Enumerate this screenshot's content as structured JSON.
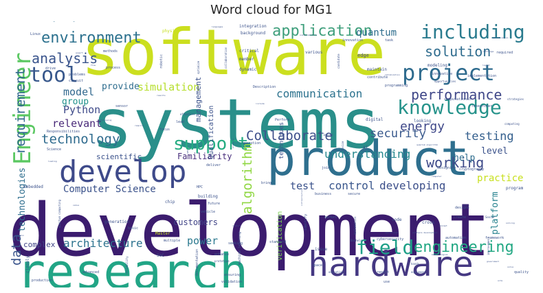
{
  "chart_data": {
    "type": "wordcloud",
    "title": "Word cloud for MG1",
    "colors": [
      "#440154",
      "#482878",
      "#3e4989",
      "#31688e",
      "#26828e",
      "#1f9e89",
      "#35b779",
      "#6ece58",
      "#b5de2b",
      "#d2e21b"
    ],
    "words": [
      {
        "text": "development",
        "weight": 100,
        "color": "#3b1c6e"
      },
      {
        "text": "systems",
        "weight": 96,
        "color": "#2a8f8a"
      },
      {
        "text": "software",
        "weight": 95,
        "color": "#cbdf1f"
      },
      {
        "text": "product",
        "weight": 80,
        "color": "#2e6f8e"
      },
      {
        "text": "research",
        "weight": 76,
        "color": "#22a586"
      },
      {
        "text": "hardware",
        "weight": 54,
        "color": "#453882"
      },
      {
        "text": "develop",
        "weight": 46,
        "color": "#3e4a8a"
      },
      {
        "text": "Engineer",
        "weight": 35,
        "color": "#5bc862"
      },
      {
        "text": "project",
        "weight": 33,
        "color": "#2e6b8e"
      },
      {
        "text": "knowledge",
        "weight": 31,
        "color": "#26938b"
      },
      {
        "text": "including",
        "weight": 29,
        "color": "#2a7b8e"
      },
      {
        "text": "tool",
        "weight": 29,
        "color": "#38588c"
      },
      {
        "text": "field",
        "weight": 27,
        "color": "#1fa088"
      },
      {
        "text": "support",
        "weight": 26,
        "color": "#25ac82"
      },
      {
        "text": "engineering",
        "weight": 24,
        "color": "#24a884"
      },
      {
        "text": "environment",
        "weight": 23,
        "color": "#2c718e"
      },
      {
        "text": "application",
        "weight": 23,
        "color": "#3f9f7c"
      },
      {
        "text": "solution",
        "weight": 22,
        "color": "#2f6c8e"
      },
      {
        "text": "analysis",
        "weight": 21,
        "color": "#3a548c"
      },
      {
        "text": "performance",
        "weight": 21,
        "color": "#3f4788"
      },
      {
        "text": "requirement",
        "weight": 20,
        "color": "#31688e"
      },
      {
        "text": "Collaborate",
        "weight": 20,
        "color": "#3d4e8a"
      },
      {
        "text": "technology",
        "weight": 20,
        "color": "#2f6b8e"
      },
      {
        "text": "working",
        "weight": 20,
        "color": "#3e4a89"
      },
      {
        "text": "data",
        "weight": 20,
        "color": "#3a548c"
      },
      {
        "text": "algorithm",
        "weight": 19,
        "color": "#90d743"
      },
      {
        "text": "energy",
        "weight": 19,
        "color": "#3f4889"
      },
      {
        "text": "security",
        "weight": 17,
        "color": "#38588c"
      },
      {
        "text": "testing",
        "weight": 17,
        "color": "#345f8d"
      },
      {
        "text": "communication",
        "weight": 17,
        "color": "#2c728e"
      },
      {
        "text": "understanding",
        "weight": 16,
        "color": "#24878e"
      },
      {
        "text": "architecture",
        "weight": 16,
        "color": "#2c728e"
      },
      {
        "text": "control",
        "weight": 16,
        "color": "#39568c"
      },
      {
        "text": "developing",
        "weight": 16,
        "color": "#3c4f8a"
      },
      {
        "text": "simulation",
        "weight": 16,
        "color": "#b5de2b"
      },
      {
        "text": "Python",
        "weight": 15,
        "color": "#3e4a89"
      },
      {
        "text": "relevant",
        "weight": 15,
        "color": "#482878"
      },
      {
        "text": "test",
        "weight": 15,
        "color": "#3b528b"
      },
      {
        "text": "model",
        "weight": 15,
        "color": "#31688e"
      },
      {
        "text": "Computer Science",
        "weight": 14,
        "color": "#3b528b"
      },
      {
        "text": "power",
        "weight": 14,
        "color": "#2a788e"
      },
      {
        "text": "practice",
        "weight": 14,
        "color": "#c8e020"
      },
      {
        "text": "technologies",
        "weight": 14,
        "color": "#2e6d8e"
      },
      {
        "text": "quantum",
        "weight": 14,
        "color": "#2e6d8e"
      },
      {
        "text": "provide",
        "weight": 13,
        "color": "#2e6d8e"
      },
      {
        "text": "group",
        "weight": 13,
        "color": "#21918c"
      },
      {
        "text": "level",
        "weight": 13,
        "color": "#3b528b"
      },
      {
        "text": "help",
        "weight": 13,
        "color": "#2e6d8e"
      },
      {
        "text": "platform",
        "weight": 13,
        "color": "#26828e"
      },
      {
        "text": "customers",
        "weight": 12,
        "color": "#414487"
      },
      {
        "text": "Familiarity",
        "weight": 12,
        "color": "#472d7b"
      },
      {
        "text": "management",
        "weight": 11,
        "color": "#3b528b"
      },
      {
        "text": "complex",
        "weight": 11,
        "color": "#414487"
      },
      {
        "text": "scientific",
        "weight": 11,
        "color": "#3b528b"
      },
      {
        "text": "Qualification",
        "weight": 10,
        "color": "#3b528b"
      },
      {
        "text": "verification",
        "weight": 10,
        "color": "#7ad151"
      },
      {
        "text": "techniques",
        "weight": 9,
        "color": "#3b528b"
      },
      {
        "text": "Electrical Engineering",
        "weight": 6,
        "color": "#2e6d8e"
      },
      {
        "text": "robot",
        "weight": 6,
        "color": "#3b528b"
      },
      {
        "text": "organization",
        "weight": 5,
        "color": "#3b528b"
      },
      {
        "text": "physics",
        "weight": 6,
        "color": "#c8e020"
      },
      {
        "text": "integration",
        "weight": 6,
        "color": "#3b528b"
      },
      {
        "text": "background",
        "weight": 6,
        "color": "#3b528b"
      },
      {
        "text": "innovation",
        "weight": 5,
        "color": "#3b528b"
      },
      {
        "text": "task",
        "weight": 5,
        "color": "#3b528b"
      },
      {
        "text": "Linux",
        "weight": 5,
        "color": "#3b528b"
      },
      {
        "text": "critical",
        "weight": 6,
        "color": "#3b528b"
      },
      {
        "text": "various",
        "weight": 6,
        "color": "#3b528b"
      },
      {
        "text": "member",
        "weight": 6,
        "color": "#3b528b"
      },
      {
        "text": "dynamic",
        "weight": 6,
        "color": "#3b528b"
      },
      {
        "text": "edge",
        "weight": 7,
        "color": "#414487"
      },
      {
        "text": "maintain",
        "weight": 6,
        "color": "#3b528b"
      },
      {
        "text": "contribute",
        "weight": 5,
        "color": "#3b528b"
      },
      {
        "text": "programming",
        "weight": 5,
        "color": "#3b528b"
      },
      {
        "text": "modeling",
        "weight": 6,
        "color": "#3b528b"
      },
      {
        "text": "implementation",
        "weight": 5,
        "color": "#3b528b"
      },
      {
        "text": "innovative",
        "weight": 5,
        "color": "#3b528b"
      },
      {
        "text": "required",
        "weight": 5,
        "color": "#3b528b"
      },
      {
        "text": "methods",
        "weight": 5,
        "color": "#3b528b"
      },
      {
        "text": "problems",
        "weight": 5,
        "color": "#3b528b"
      },
      {
        "text": "drive",
        "weight": 5,
        "color": "#3b528b"
      },
      {
        "text": "process",
        "weight": 5,
        "color": "#3b528b"
      },
      {
        "text": "circuit",
        "weight": 5,
        "color": "#3b528b"
      },
      {
        "text": "robotic",
        "weight": 5,
        "color": "#3b528b"
      },
      {
        "text": "Description",
        "weight": 5,
        "color": "#3b528b"
      },
      {
        "text": "computational",
        "weight": 5,
        "color": "#3b528b"
      },
      {
        "text": "researcher",
        "weight": 5,
        "color": "#3b528b"
      },
      {
        "text": "Responsibilities",
        "weight": 5,
        "color": "#3b528b"
      },
      {
        "text": "sensor",
        "weight": 5,
        "color": "#3b528b"
      },
      {
        "text": "focus",
        "weight": 5,
        "color": "#3b528b"
      },
      {
        "text": "lead",
        "weight": 5,
        "color": "#3b528b"
      },
      {
        "text": "Perform",
        "weight": 5,
        "color": "#3b528b"
      },
      {
        "text": "digital",
        "weight": 6,
        "color": "#3b528b"
      },
      {
        "text": "looking",
        "weight": 6,
        "color": "#3b528b"
      },
      {
        "text": "Science",
        "weight": 5,
        "color": "#3b528b"
      },
      {
        "text": "operation",
        "weight": 5,
        "color": "#3b528b"
      },
      {
        "text": "AI",
        "weight": 6,
        "color": "#3b528b"
      },
      {
        "text": "designing",
        "weight": 5,
        "color": "#3b528b"
      },
      {
        "text": "cryptography",
        "weight": 5,
        "color": "#3b528b"
      },
      {
        "text": "embedded",
        "weight": 6,
        "color": "#3b528b"
      },
      {
        "text": "join",
        "weight": 5,
        "color": "#3b528b"
      },
      {
        "text": "deliver",
        "weight": 5,
        "color": "#3b528b"
      },
      {
        "text": "HPC",
        "weight": 5,
        "color": "#3b528b"
      },
      {
        "text": "chip",
        "weight": 6,
        "color": "#3b528b"
      },
      {
        "text": "bring",
        "weight": 5,
        "color": "#3b528b"
      },
      {
        "text": "program",
        "weight": 6,
        "color": "#3b528b"
      },
      {
        "text": "building",
        "weight": 6,
        "color": "#3b528b"
      },
      {
        "text": "future",
        "weight": 5,
        "color": "#3b528b"
      },
      {
        "text": "business",
        "weight": 5,
        "color": "#3b528b"
      },
      {
        "text": "secure",
        "weight": 5,
        "color": "#3b528b"
      },
      {
        "text": "designs",
        "weight": 5,
        "color": "#3b528b"
      },
      {
        "text": "vehicle",
        "weight": 5,
        "color": "#3b528b"
      },
      {
        "text": "create",
        "weight": 5,
        "color": "#3b528b"
      },
      {
        "text": "generation",
        "weight": 6,
        "color": "#3b528b"
      },
      {
        "text": "market",
        "weight": 5,
        "color": "#3b528b"
      },
      {
        "text": "identify",
        "weight": 5,
        "color": "#3b528b"
      },
      {
        "text": "code",
        "weight": 6,
        "color": "#3b528b"
      },
      {
        "text": "cross",
        "weight": 6,
        "color": "#3b528b"
      },
      {
        "text": "basic",
        "weight": 5,
        "color": "#3b528b"
      },
      {
        "text": "Master",
        "weight": 6,
        "color": "#c8e020"
      },
      {
        "text": "automation",
        "weight": 5,
        "color": "#3b528b"
      },
      {
        "text": "framework",
        "weight": 5,
        "color": "#3b528b"
      },
      {
        "text": "multiple",
        "weight": 5,
        "color": "#3b528b"
      },
      {
        "text": "seeking",
        "weight": 5,
        "color": "#3b528b"
      },
      {
        "text": "standard",
        "weight": 5,
        "color": "#3b528b"
      },
      {
        "text": "cybersecurity",
        "weight": 5,
        "color": "#3b528b"
      },
      {
        "text": "issue",
        "weight": 6,
        "color": "#3b528b"
      },
      {
        "text": "SoC",
        "weight": 6,
        "color": "#3b528b"
      },
      {
        "text": "enhance",
        "weight": 5,
        "color": "#3b528b"
      },
      {
        "text": "prototype",
        "weight": 4,
        "color": "#3b528b"
      },
      {
        "text": "machine learning",
        "weight": 5,
        "color": "#3b528b"
      },
      {
        "text": "space",
        "weight": 5,
        "color": "#3b528b"
      },
      {
        "text": "closely",
        "weight": 6,
        "color": "#3b528b"
      },
      {
        "text": "advanced",
        "weight": 5,
        "color": "#3b528b"
      },
      {
        "text": "production",
        "weight": 5,
        "color": "#3b528b"
      },
      {
        "text": "documentation",
        "weight": 5,
        "color": "#3b528b"
      },
      {
        "text": "ensuring",
        "weight": 5,
        "color": "#3b528b"
      },
      {
        "text": "validation",
        "weight": 5,
        "color": "#3b528b"
      },
      {
        "text": "report",
        "weight": 5,
        "color": "#3b528b"
      },
      {
        "text": "use",
        "weight": 5,
        "color": "#3b528b"
      },
      {
        "text": "quality",
        "weight": 5,
        "color": "#3b528b"
      },
      {
        "text": "quantum computing",
        "weight": 4,
        "color": "#3b528b"
      },
      {
        "text": "Bachelor",
        "weight": 4,
        "color": "#3b528b"
      },
      {
        "text": "Senior",
        "weight": 4,
        "color": "#3b528b"
      },
      {
        "text": "improvement",
        "weight": 4,
        "color": "#3b528b"
      },
      {
        "text": "hands",
        "weight": 4,
        "color": "#3b528b"
      },
      {
        "text": "impact",
        "weight": 4,
        "color": "#3b528b"
      },
      {
        "text": "strategies",
        "weight": 4,
        "color": "#3b528b"
      },
      {
        "text": "computing",
        "weight": 4,
        "color": "#3b528b"
      },
      {
        "text": "optimize",
        "weight": 4,
        "color": "#3b528b"
      },
      {
        "text": "collaboration",
        "weight": 4,
        "color": "#3b528b"
      },
      {
        "text": "candidate",
        "weight": 4,
        "color": "#3b528b"
      },
      {
        "text": "effective",
        "weight": 4,
        "color": "#3b528b"
      },
      {
        "text": "mathematics",
        "weight": 4,
        "color": "#3b528b"
      },
      {
        "text": "equipment",
        "weight": 4,
        "color": "#3b528b"
      },
      {
        "text": "education",
        "weight": 4,
        "color": "#3b528b"
      },
      {
        "text": "results",
        "weight": 3,
        "color": "#3b528b"
      },
      {
        "text": "following",
        "weight": 3,
        "color": "#3b528b"
      },
      {
        "text": "require",
        "weight": 3,
        "color": "#3b528b"
      },
      {
        "text": "include",
        "weight": 3,
        "color": "#3b528b"
      },
      {
        "text": "device",
        "weight": 4,
        "color": "#3b528b"
      },
      {
        "text": "reliability",
        "weight": 4,
        "color": "#3b528b"
      },
      {
        "text": "conduct",
        "weight": 3,
        "color": "#3b528b"
      },
      {
        "text": "domain",
        "weight": 3,
        "color": "#3b528b"
      },
      {
        "text": "solving",
        "weight": 3,
        "color": "#3b528b"
      },
      {
        "text": "concept",
        "weight": 3,
        "color": "#3b528b"
      },
      {
        "text": "quantum algorithm",
        "weight": 3,
        "color": "#3b528b"
      },
      {
        "text": "sustainability",
        "weight": 3,
        "color": "#3b528b"
      },
      {
        "text": "specification",
        "weight": 3,
        "color": "#3b528b"
      },
      {
        "text": "languages",
        "weight": 3,
        "color": "#3b528b"
      },
      {
        "text": "opportunities",
        "weight": 4,
        "color": "#3b528b"
      },
      {
        "text": "challenge",
        "weight": 3,
        "color": "#3b528b"
      },
      {
        "text": "layout",
        "weight": 3,
        "color": "#3b528b"
      },
      {
        "text": "flow",
        "weight": 3,
        "color": "#3b528b"
      },
      {
        "text": "expert",
        "weight": 3,
        "color": "#3b528b"
      },
      {
        "text": "GPU",
        "weight": 3,
        "color": "#3b528b"
      },
      {
        "text": "protocol",
        "weight": 3,
        "color": "#3b528b"
      },
      {
        "text": "loading",
        "weight": 3,
        "color": "#3b528b"
      },
      {
        "text": "value",
        "weight": 3,
        "color": "#3b528b"
      },
      {
        "text": "site",
        "weight": 3,
        "color": "#3b528b"
      },
      {
        "text": "solve",
        "weight": 3,
        "color": "#3b528b"
      },
      {
        "text": "government",
        "weight": 3,
        "color": "#3b528b"
      },
      {
        "text": "methodologies",
        "weight": 3,
        "color": "#3b528b"
      },
      {
        "text": "mission",
        "weight": 3,
        "color": "#3b528b"
      },
      {
        "text": "operational",
        "weight": 3,
        "color": "#3b528b"
      },
      {
        "text": "software development",
        "weight": 3,
        "color": "#3b528b"
      },
      {
        "text": "infrastructure",
        "weight": 3,
        "color": "#3b528b"
      },
      {
        "text": "computer",
        "weight": 3,
        "color": "#3b528b"
      },
      {
        "text": "optimization",
        "weight": 3,
        "color": "#3b528b"
      }
    ]
  }
}
